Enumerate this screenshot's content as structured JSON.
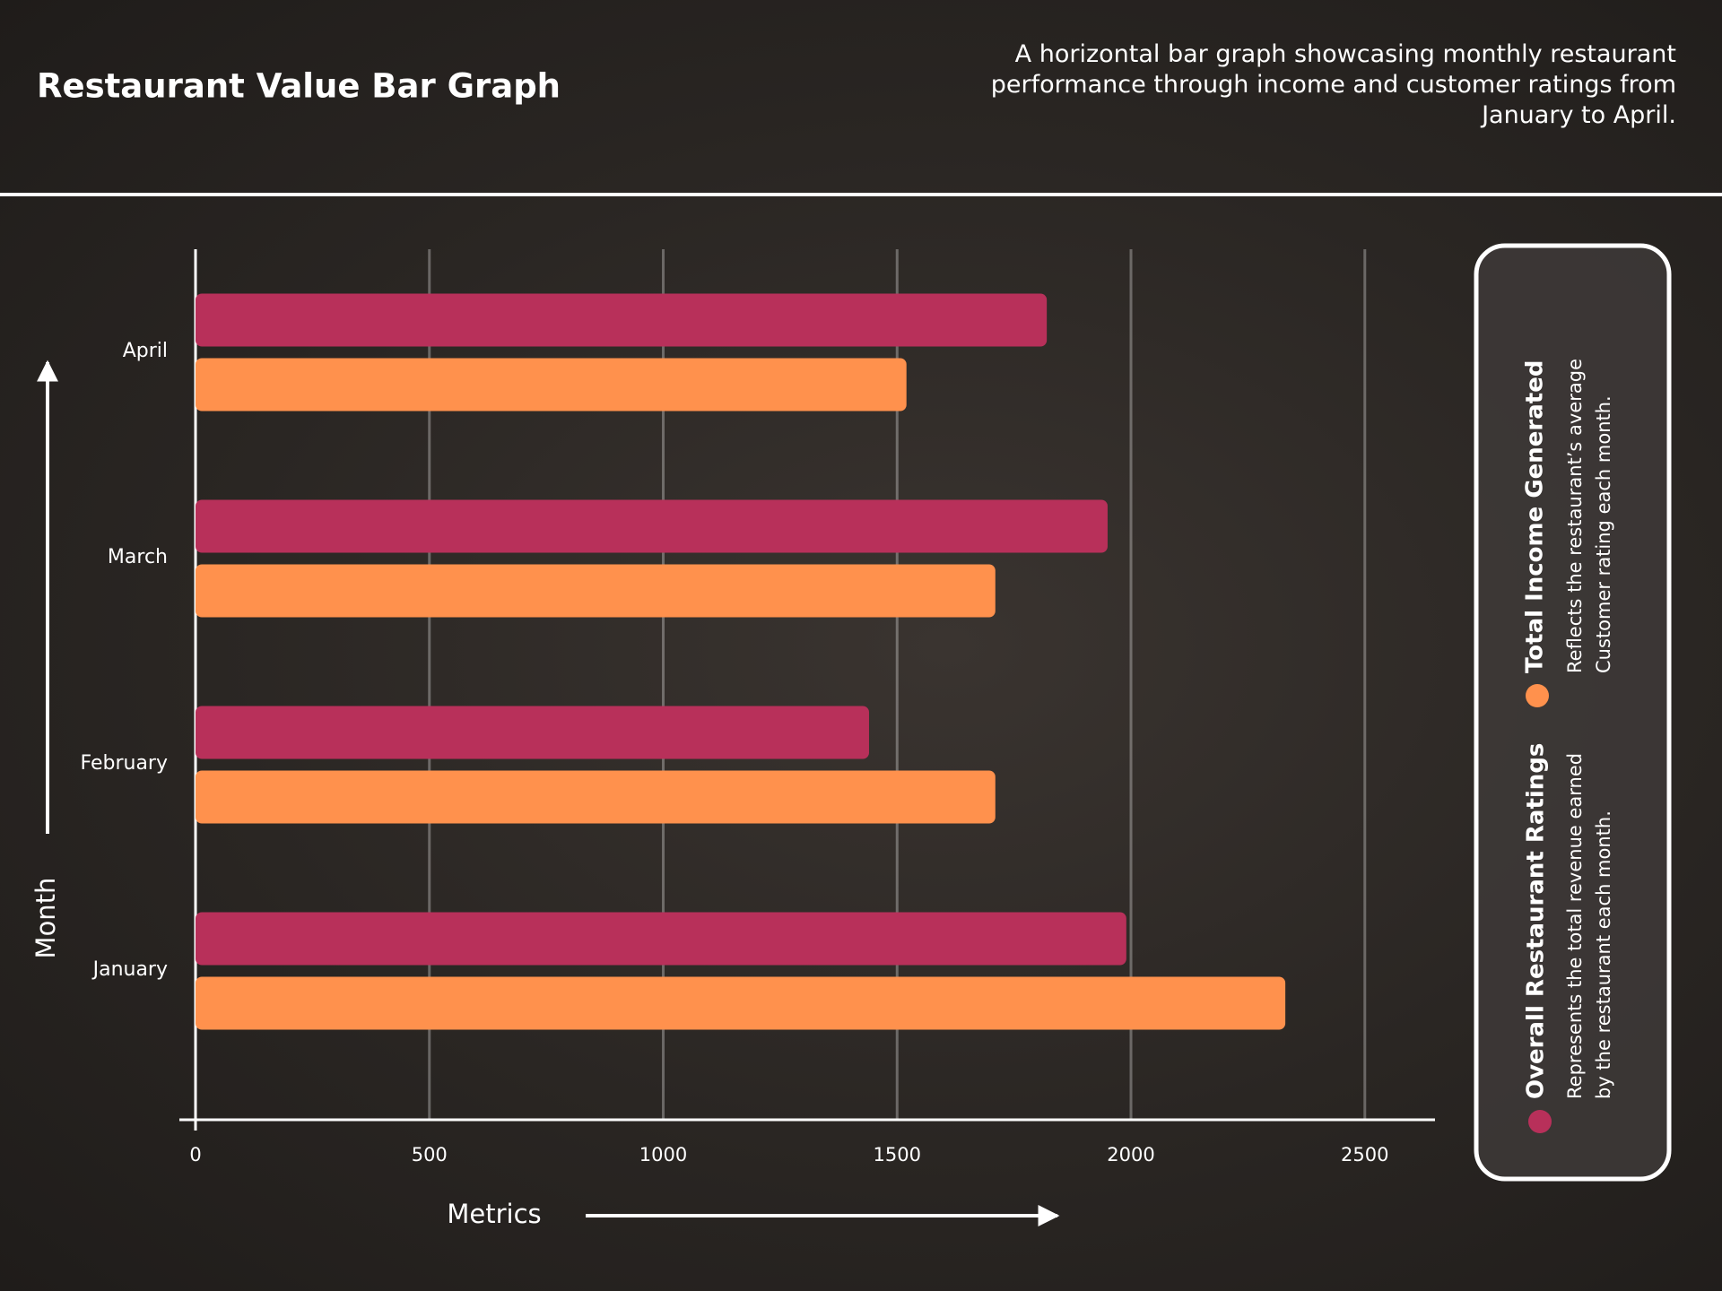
{
  "chart_data": {
    "type": "bar",
    "orientation": "horizontal",
    "title": "Restaurant Value Bar Graph",
    "subtitle": "A horizontal bar graph showcasing monthly restaurant performance through income and customer ratings from January to April.",
    "x_label": "Metrics",
    "y_label": "Month",
    "categories": [
      "January",
      "February",
      "March",
      "April"
    ],
    "series": [
      {
        "name": "Overall Restaurant Ratings",
        "color": "#b8305a",
        "values": [
          1990,
          1440,
          1950,
          1820
        ],
        "description": [
          "Represents the total revenue earned",
          "by the restaurant each month."
        ]
      },
      {
        "name": "Total Income Generated",
        "color": "#ff914d",
        "values": [
          2330,
          1710,
          1710,
          1520
        ],
        "description": [
          "Reflects the restaurant’s average",
          "Customer rating each month."
        ]
      }
    ],
    "xlim": [
      0,
      2650
    ],
    "xticks": [
      0,
      500,
      1000,
      1500,
      2000,
      2500
    ],
    "grid": true
  }
}
